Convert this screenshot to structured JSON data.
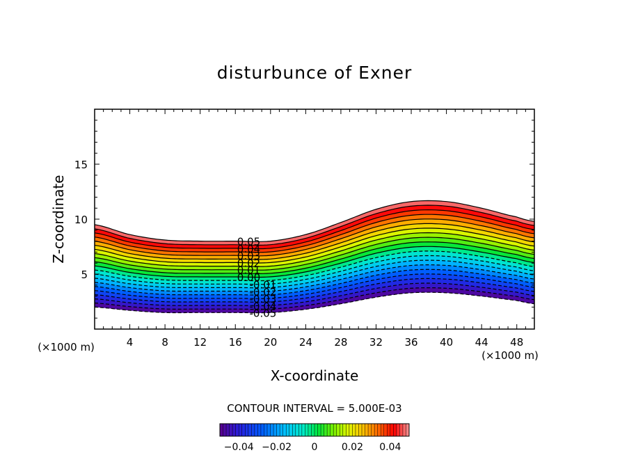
{
  "chart_data": {
    "type": "contour",
    "title": "disturbunce of Exner",
    "xlabel": "X-coordinate",
    "ylabel": "Z-coordinate",
    "x_unit": "(×1000 m)",
    "y_unit": "(×1000 m)",
    "xlim": [
      0,
      50
    ],
    "ylim": [
      0,
      20
    ],
    "x_ticks": [
      4,
      8,
      12,
      16,
      20,
      24,
      28,
      32,
      36,
      40,
      44,
      48
    ],
    "x_tick_labels": [
      "4",
      "8",
      "12",
      "16",
      "20",
      "24",
      "28",
      "32",
      "36",
      "40",
      "44",
      "48"
    ],
    "y_ticks": [
      5,
      10,
      15
    ],
    "y_tick_labels": [
      "5",
      "10",
      "15"
    ],
    "contour_interval_text": "CONTOUR INTERVAL = 5.000E-03",
    "levels": [
      -0.05,
      -0.045,
      -0.04,
      -0.035,
      -0.03,
      -0.025,
      -0.02,
      -0.015,
      -0.01,
      -0.005,
      0,
      0.005,
      0.01,
      0.015,
      0.02,
      0.025,
      0.03,
      0.035,
      0.04,
      0.045,
      0.05
    ],
    "contour_labels": [
      "0.05",
      "0.04",
      "0.03",
      "0.02",
      "0.01",
      "0.00",
      "-0.01",
      "-0.02",
      "-0.03",
      "-0.04",
      "-0.05"
    ],
    "shape_x": [
      0,
      4,
      8,
      12,
      16,
      20,
      24,
      28,
      32,
      36,
      40,
      44,
      48,
      50
    ],
    "shape_top": [
      9.5,
      8.6,
      8.1,
      8.0,
      8.0,
      8.0,
      8.6,
      9.7,
      10.9,
      11.6,
      11.6,
      11.0,
      10.2,
      9.8
    ],
    "shape_bottom": [
      2.0,
      1.7,
      1.5,
      1.5,
      1.5,
      1.5,
      1.8,
      2.3,
      2.9,
      3.3,
      3.3,
      3.0,
      2.6,
      2.3
    ],
    "colorbar": {
      "range": [
        -0.05,
        0.05
      ],
      "tick_values": [
        -0.04,
        -0.02,
        0,
        0.02,
        0.04
      ],
      "tick_labels": [
        "−0.04",
        "−0.02",
        "0",
        "0.02",
        "0.04"
      ]
    }
  }
}
